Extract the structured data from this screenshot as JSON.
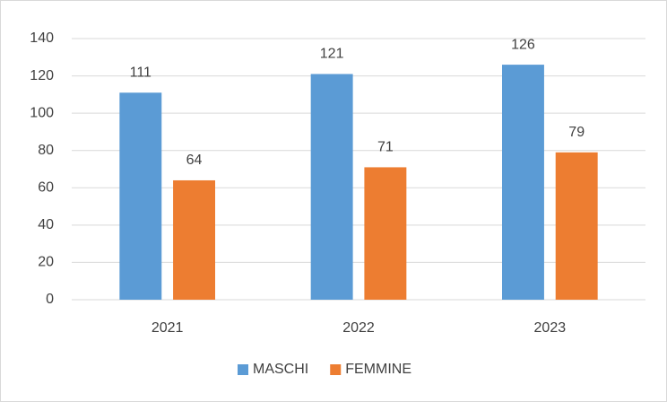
{
  "chart_data": {
    "type": "bar",
    "categories": [
      "2021",
      "2022",
      "2023"
    ],
    "series": [
      {
        "name": "MASCHI",
        "color": "#5b9bd5",
        "values": [
          111,
          121,
          126
        ]
      },
      {
        "name": "FEMMINE",
        "color": "#ed7d31",
        "values": [
          64,
          71,
          79
        ]
      }
    ],
    "ylim": [
      0,
      140
    ],
    "yticks": [
      0,
      20,
      40,
      60,
      80,
      100,
      120,
      140
    ],
    "grid": true,
    "legend": "bottom"
  }
}
